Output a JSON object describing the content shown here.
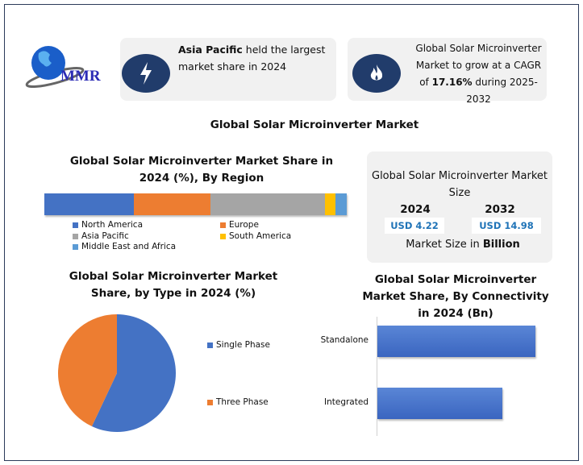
{
  "logo": {
    "text": "MMR"
  },
  "info_cards": [
    {
      "icon": "lightning-icon",
      "bold": "Asia Pacific",
      "text": " held the largest market share in 2024"
    },
    {
      "icon": "flame-icon",
      "text_a": "Global Solar Microinverter Market to grow at a CAGR of ",
      "bold": "17.16%",
      "text_b": " during 2025-2032"
    }
  ],
  "main_title": "Global Solar Microinverter Market",
  "market_size": {
    "title": "Global Solar Microinverter Market Size",
    "years": [
      "2024",
      "2032"
    ],
    "values": [
      "USD 4.22",
      "USD 14.98"
    ],
    "unit_text": "Market Size in ",
    "unit_bold": "Billion"
  },
  "colors": {
    "north_america": "#4472c4",
    "europe": "#ed7d31",
    "asia_pacific": "#a5a5a5",
    "south_america": "#ffc000",
    "mea": "#5b9bd5",
    "navy": "#213c6b"
  },
  "chart_data": [
    {
      "type": "bar",
      "orientation": "stacked-horizontal",
      "title": "Global Solar Microinverter Market Share in 2024 (%), By Region",
      "series": [
        {
          "name": "North America",
          "values": [
            29.6
          ]
        },
        {
          "name": "Europe",
          "values": [
            25.3
          ]
        },
        {
          "name": "Asia Pacific",
          "values": [
            37.9
          ]
        },
        {
          "name": "South America",
          "values": [
            3.5
          ]
        },
        {
          "name": "Middle East and Africa",
          "values": [
            3.7
          ]
        }
      ],
      "legend": "bottom"
    },
    {
      "type": "pie",
      "title": "Global Solar Microinverter Market Share, by Type in 2024 (%)",
      "categories": [
        "Single Phase",
        "Three Phase"
      ],
      "values": [
        57,
        43
      ],
      "legend": "right"
    },
    {
      "type": "bar",
      "orientation": "horizontal",
      "title": "Global Solar Microinverter Market Share, By Connectivity in 2024 (Bn)",
      "categories": [
        "Standalone",
        "Integrated"
      ],
      "values": [
        1.0,
        0.79
      ]
    }
  ]
}
